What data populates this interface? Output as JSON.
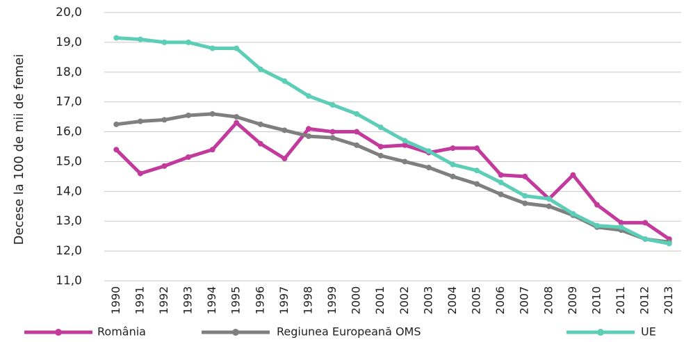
{
  "chart_data": {
    "type": "line",
    "y_label": "Decese la 100 de mii de femei",
    "categories": [
      "1990",
      "1991",
      "1992",
      "1993",
      "1994",
      "1995",
      "1996",
      "1997",
      "1998",
      "1999",
      "2000",
      "2001",
      "2002",
      "2003",
      "2004",
      "2005",
      "2006",
      "2007",
      "2008",
      "2009",
      "2010",
      "2011",
      "2012",
      "2013"
    ],
    "series": [
      {
        "name": "România",
        "color": "#c23b9c",
        "values": [
          15.4,
          14.6,
          14.85,
          15.15,
          15.4,
          16.3,
          15.6,
          15.1,
          16.1,
          16.0,
          16.0,
          15.5,
          15.55,
          15.3,
          15.45,
          15.45,
          14.55,
          14.5,
          13.75,
          14.55,
          13.55,
          12.95,
          12.95,
          12.4
        ]
      },
      {
        "name": "Regiunea Europeană OMS",
        "color": "#7f7f7f",
        "values": [
          16.25,
          16.35,
          16.4,
          16.55,
          16.6,
          16.5,
          16.25,
          16.05,
          15.85,
          15.8,
          15.55,
          15.2,
          15.0,
          14.8,
          14.5,
          14.25,
          13.9,
          13.6,
          13.5,
          13.2,
          12.8,
          12.7,
          12.4,
          12.3
        ]
      },
      {
        "name": "UE",
        "color": "#5ccdb6",
        "values": [
          19.15,
          19.1,
          19.0,
          19.0,
          18.8,
          18.8,
          18.1,
          17.7,
          17.2,
          16.9,
          16.6,
          16.15,
          15.7,
          15.35,
          14.9,
          14.7,
          14.3,
          13.85,
          13.75,
          13.25,
          12.85,
          12.8,
          12.4,
          12.25
        ]
      }
    ],
    "ylim": [
      11,
      20
    ],
    "yticks": [
      {
        "value": 11,
        "label": "11,0"
      },
      {
        "value": 12,
        "label": "12,0"
      },
      {
        "value": 13,
        "label": "13,0"
      },
      {
        "value": 14,
        "label": "14,0"
      },
      {
        "value": 15,
        "label": "15,0"
      },
      {
        "value": 16,
        "label": "16,0"
      },
      {
        "value": 17,
        "label": "17,0"
      },
      {
        "value": 18,
        "label": "18,0"
      },
      {
        "value": 19,
        "label": "19,0"
      },
      {
        "value": 20,
        "label": "20,0"
      }
    ],
    "grid": true
  }
}
